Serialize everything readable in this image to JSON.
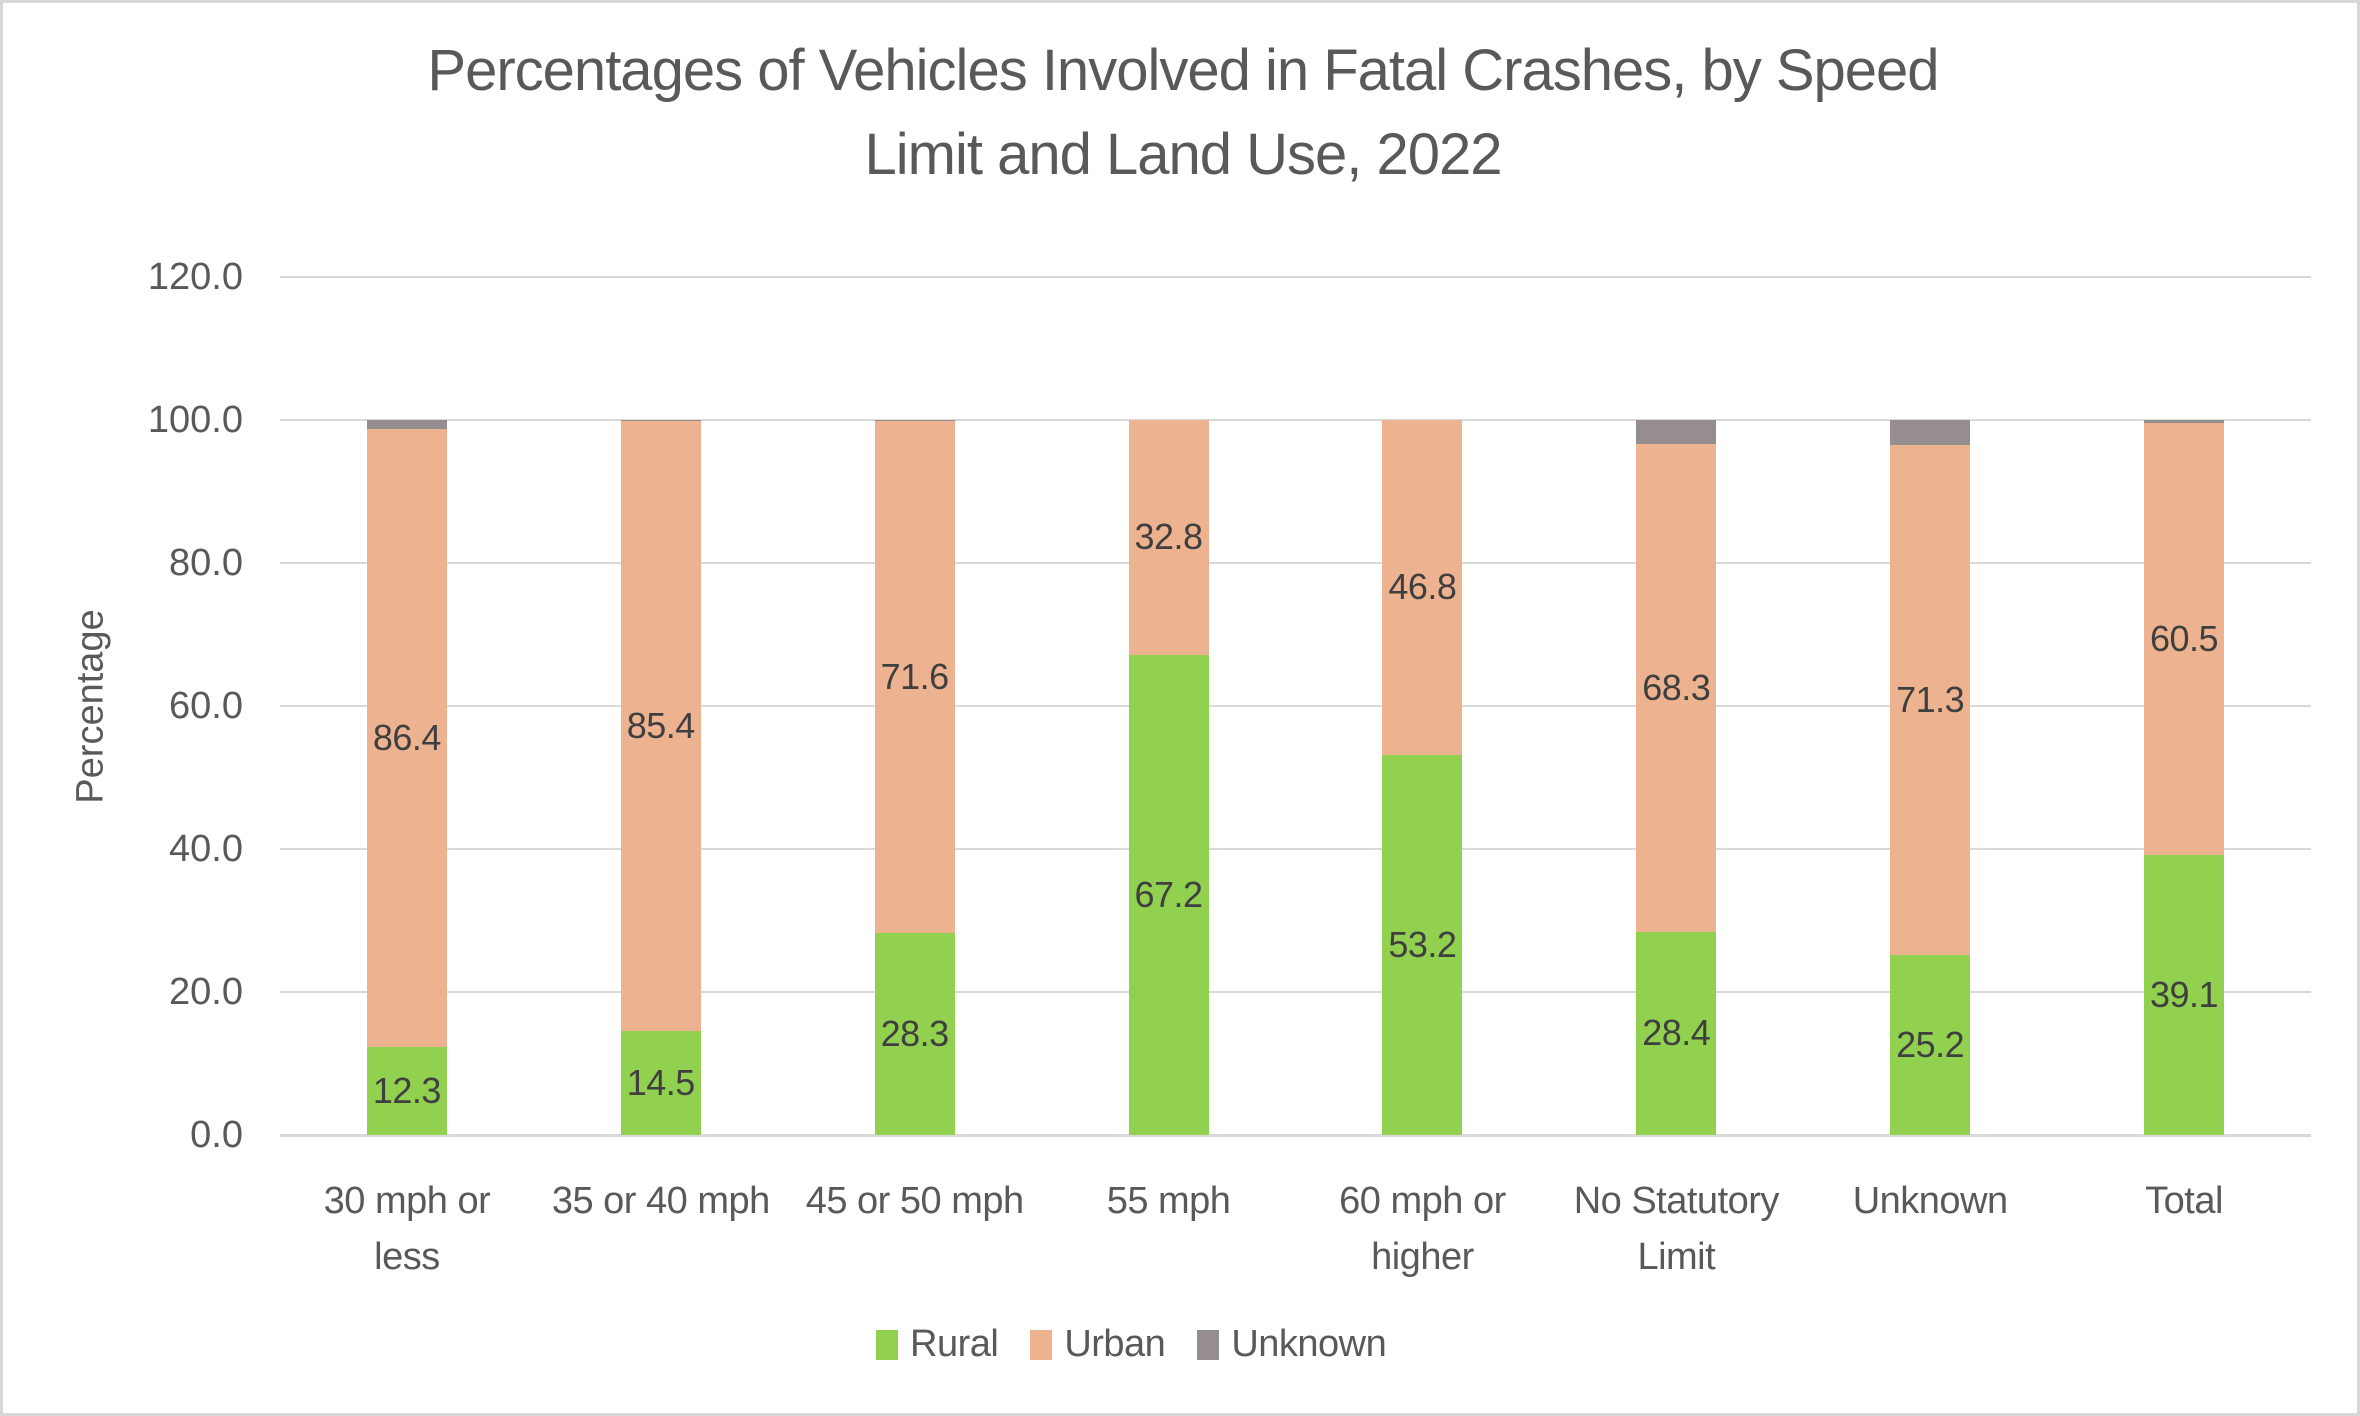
{
  "title": {
    "full": "Percentages of Vehicles Involved in Fatal Crashes, by Speed Limit and Land Use, 2022",
    "line1": "Percentages of Vehicles Involved in Fatal Crashes, by Speed",
    "line2": "Limit and Land Use, 2022"
  },
  "chart_data": {
    "type": "bar",
    "stacked": true,
    "title": "Percentages of Vehicles Involved in Fatal Crashes, by Speed Limit and Land Use, 2022",
    "xlabel": "",
    "ylabel": "Percentage",
    "ylim": [
      0,
      120
    ],
    "ytick_step": 20,
    "ytick_labels": [
      "0.0",
      "20.0",
      "40.0",
      "60.0",
      "80.0",
      "100.0",
      "120.0"
    ],
    "grid": true,
    "legend_position": "bottom",
    "gridline_color": "#d9d9d9",
    "categories": [
      {
        "label": "30 mph or less",
        "lines": [
          "30 mph or",
          "less"
        ]
      },
      {
        "label": "35 or 40 mph",
        "lines": [
          "35 or 40 mph"
        ]
      },
      {
        "label": "45 or 50 mph",
        "lines": [
          "45 or 50 mph"
        ]
      },
      {
        "label": "55 mph",
        "lines": [
          "55 mph"
        ]
      },
      {
        "label": "60 mph or higher",
        "lines": [
          "60 mph or",
          "higher"
        ]
      },
      {
        "label": "No Statutory Limit",
        "lines": [
          "No Statutory",
          "Limit"
        ]
      },
      {
        "label": "Unknown",
        "lines": [
          "Unknown"
        ]
      },
      {
        "label": "Total",
        "lines": [
          "Total"
        ]
      }
    ],
    "series": [
      {
        "name": "Rural",
        "color": "#92d050",
        "data_labels": true,
        "values": [
          12.3,
          14.5,
          28.3,
          67.2,
          53.2,
          28.4,
          25.2,
          39.1
        ]
      },
      {
        "name": "Urban",
        "color": "#edb28f",
        "data_labels": true,
        "values": [
          86.4,
          85.4,
          71.6,
          32.8,
          46.8,
          68.3,
          71.3,
          60.5
        ]
      },
      {
        "name": "Unknown",
        "color": "#958d8e",
        "data_labels": false,
        "values": [
          1.3,
          0.1,
          0.1,
          0.0,
          0.0,
          3.3,
          3.5,
          0.4
        ]
      }
    ]
  }
}
